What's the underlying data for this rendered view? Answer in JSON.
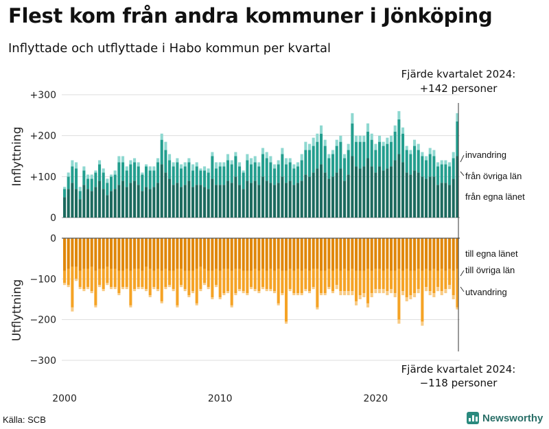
{
  "title": "Flest kom från andra kommuner i Jönköping",
  "subtitle": "Inflyttade och utflyttade i Habo kommun per kvartal",
  "source": "Källa: SCB",
  "brand": "Newsworthy",
  "colors": {
    "in_egna": "#1c6a5e",
    "in_ovriga": "#239e8e",
    "in_invandring": "#8ed8d0",
    "ut_egna": "#e0870a",
    "ut_ovriga": "#f5a325",
    "ut_utvandring": "#f8cb85"
  },
  "chart_data": {
    "type": "bar",
    "stacked": true,
    "x_start": "2000 Q1",
    "x_ticks": [
      "2000",
      "2010",
      "2020"
    ],
    "panels": [
      {
        "ylabel": "Inflyttning",
        "ylim": [
          0,
          300
        ],
        "y_ticks": [
          "0",
          "+100",
          "+200",
          "+300"
        ],
        "series": [
          {
            "name": "från egna länet",
            "values": [
              50,
              70,
              85,
              70,
              45,
              80,
              70,
              65,
              75,
              90,
              70,
              55,
              65,
              70,
              80,
              90,
              75,
              85,
              90,
              80,
              65,
              75,
              70,
              75,
              85,
              130,
              110,
              95,
              80,
              85,
              75,
              80,
              90,
              75,
              80,
              80,
              75,
              70,
              95,
              80,
              80,
              80,
              90,
              85,
              100,
              80,
              70,
              90,
              85,
              90,
              80,
              100,
              90,
              85,
              80,
              85,
              100,
              85,
              90,
              80,
              85,
              90,
              105,
              100,
              110,
              120,
              130,
              110,
              95,
              100,
              110,
              120,
              90,
              105,
              150,
              125,
              120,
              125,
              145,
              125,
              110,
              125,
              115,
              120,
              125,
              140,
              155,
              135,
              110,
              105,
              115,
              110,
              100,
              95,
              100,
              100,
              80,
              85,
              85,
              80,
              95,
              150
            ]
          },
          {
            "name": "från övriga län",
            "values": [
              20,
              30,
              40,
              50,
              20,
              35,
              25,
              30,
              35,
              40,
              40,
              30,
              35,
              35,
              55,
              45,
              40,
              45,
              45,
              45,
              40,
              50,
              45,
              40,
              50,
              60,
              55,
              45,
              45,
              50,
              45,
              45,
              45,
              40,
              45,
              35,
              40,
              40,
              55,
              40,
              45,
              45,
              50,
              45,
              50,
              45,
              40,
              50,
              45,
              45,
              45,
              55,
              55,
              50,
              40,
              45,
              55,
              45,
              45,
              40,
              40,
              50,
              60,
              65,
              65,
              65,
              75,
              65,
              50,
              55,
              65,
              65,
              55,
              60,
              80,
              60,
              65,
              60,
              65,
              65,
              55,
              60,
              60,
              60,
              60,
              70,
              85,
              70,
              55,
              50,
              60,
              55,
              50,
              45,
              55,
              50,
              45,
              45,
              45,
              45,
              50,
              85
            ]
          },
          {
            "name": "invandring",
            "values": [
              5,
              10,
              15,
              15,
              10,
              10,
              10,
              10,
              5,
              10,
              10,
              10,
              5,
              10,
              15,
              15,
              10,
              10,
              10,
              10,
              5,
              5,
              10,
              10,
              10,
              15,
              20,
              15,
              10,
              10,
              10,
              10,
              10,
              15,
              10,
              5,
              10,
              10,
              10,
              15,
              10,
              10,
              15,
              10,
              10,
              10,
              5,
              15,
              15,
              15,
              10,
              15,
              15,
              15,
              10,
              10,
              15,
              15,
              10,
              10,
              10,
              15,
              20,
              15,
              20,
              20,
              20,
              15,
              10,
              10,
              15,
              15,
              10,
              15,
              25,
              15,
              15,
              15,
              20,
              15,
              15,
              15,
              10,
              15,
              15,
              15,
              20,
              15,
              10,
              10,
              15,
              15,
              10,
              10,
              15,
              15,
              10,
              10,
              10,
              10,
              15,
              20
            ]
          }
        ]
      },
      {
        "ylabel": "Utflyttning",
        "ylim": [
          -300,
          0
        ],
        "y_ticks": [
          "0",
          "−100",
          "−200",
          "−300"
        ],
        "series": [
          {
            "name": "till egna länet",
            "values": [
              -80,
              -75,
              -70,
              -70,
              -80,
              -75,
              -75,
              -70,
              -80,
              -75,
              -75,
              -70,
              -75,
              -75,
              -80,
              -80,
              -75,
              -80,
              -75,
              -75,
              -80,
              -70,
              -75,
              -80,
              -75,
              -80,
              -75,
              -80,
              -80,
              -75,
              -75,
              -80,
              -80,
              -80,
              -75,
              -70,
              -75,
              -80,
              -80,
              -75,
              -80,
              -75,
              -75,
              -80,
              -75,
              -75,
              -80,
              -80,
              -80,
              -75,
              -80,
              -75,
              -80,
              -75,
              -80,
              -75,
              -80,
              -80,
              -75,
              -80,
              -75,
              -80,
              -75,
              -80,
              -75,
              -75,
              -80,
              -80,
              -75,
              -80,
              -75,
              -80,
              -75,
              -80,
              -75,
              -80,
              -80,
              -80,
              -75,
              -80,
              -75,
              -75,
              -80,
              -75,
              -80,
              -80,
              -75,
              -80,
              -75,
              -80,
              -80,
              -75,
              -80,
              -75,
              -80,
              -75,
              -80,
              -75,
              -80,
              -75,
              -80,
              -75
            ]
          },
          {
            "name": "till övriga län",
            "values": [
              -30,
              -40,
              -100,
              -30,
              -40,
              -50,
              -45,
              -60,
              -85,
              -40,
              -50,
              -40,
              -45,
              -45,
              -55,
              -40,
              -45,
              -85,
              -50,
              -45,
              -40,
              -55,
              -65,
              -40,
              -50,
              -75,
              -45,
              -35,
              -45,
              -90,
              -40,
              -45,
              -60,
              -50,
              -85,
              -55,
              -35,
              -40,
              -65,
              -40,
              -65,
              -60,
              -55,
              -85,
              -60,
              -50,
              -50,
              -55,
              -40,
              -50,
              -50,
              -45,
              -45,
              -50,
              -50,
              -85,
              -55,
              -125,
              -50,
              -55,
              -60,
              -55,
              -50,
              -50,
              -45,
              -95,
              -55,
              -55,
              -45,
              -50,
              -40,
              -50,
              -55,
              -50,
              -55,
              -75,
              -60,
              -55,
              -85,
              -55,
              -50,
              -50,
              -45,
              -55,
              -45,
              -55,
              -125,
              -50,
              -70,
              -60,
              -55,
              -50,
              -125,
              -45,
              -50,
              -60,
              -40,
              -55,
              -45,
              -40,
              -60,
              -95
            ]
          },
          {
            "name": "utvandring",
            "values": [
              -5,
              -5,
              -10,
              -5,
              -5,
              -5,
              -5,
              -5,
              -5,
              -5,
              -5,
              -5,
              -5,
              -5,
              -5,
              -5,
              -5,
              -5,
              -5,
              -5,
              -5,
              -5,
              -5,
              -5,
              -5,
              -5,
              -5,
              -5,
              -5,
              -5,
              -5,
              -5,
              -5,
              -5,
              -5,
              -5,
              -5,
              -5,
              -5,
              -5,
              -5,
              -5,
              -5,
              -5,
              -5,
              -5,
              -5,
              -5,
              -5,
              -5,
              -5,
              -5,
              -5,
              -5,
              -5,
              -5,
              -5,
              -5,
              -5,
              -5,
              -5,
              -5,
              -5,
              -5,
              -5,
              -5,
              -5,
              -5,
              -5,
              -5,
              -10,
              -10,
              -10,
              -10,
              -10,
              -10,
              -10,
              -10,
              -10,
              -10,
              -10,
              -10,
              -10,
              -10,
              -10,
              -10,
              -10,
              -10,
              -10,
              -10,
              -10,
              -10,
              -10,
              -10,
              -10,
              -10,
              -10,
              -10,
              -10,
              -10,
              -10,
              -5
            ]
          }
        ]
      }
    ],
    "annotations": [
      {
        "line1": "Fjärde kvartalet 2024:",
        "line2": "+142 personer"
      },
      {
        "line1": "Fjärde kvartalet 2024:",
        "line2": "−118 personer"
      }
    ]
  }
}
